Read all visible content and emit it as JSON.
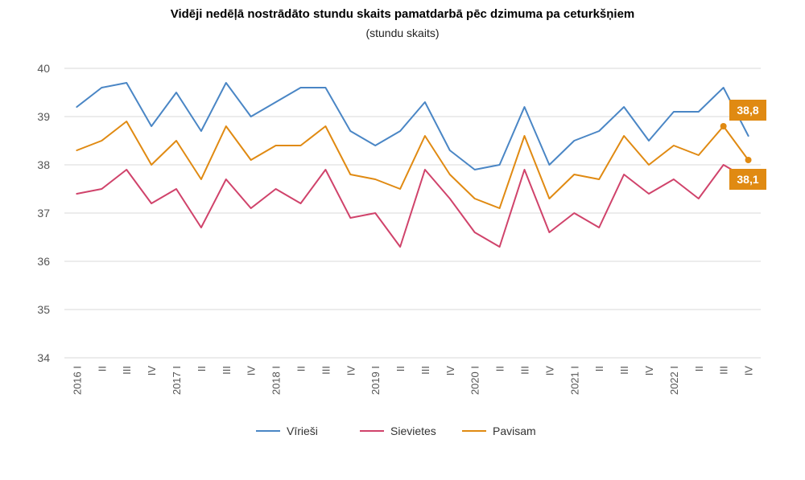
{
  "chart_data": {
    "type": "line",
    "title": "Vidēji nedēļā nostrādāto stundu skaits pamatdarbā pēc dzimuma pa ceturkšņiem",
    "subtitle": "(stundu skaits)",
    "xlabel": "",
    "ylabel": "",
    "ylim": [
      34,
      40
    ],
    "yticks": [
      "40",
      "39",
      "38",
      "37",
      "36",
      "35",
      "34"
    ],
    "grid": true,
    "legend_position": "bottom",
    "categories": [
      "2016 I",
      "II",
      "III",
      "IV",
      "2017 I",
      "II",
      "III",
      "IV",
      "2018 I",
      "II",
      "III",
      "IV",
      "2019 I",
      "II",
      "III",
      "IV",
      "2020 I",
      "II",
      "III",
      "IV",
      "2021 I",
      "II",
      "III",
      "IV",
      "2022 I",
      "II",
      "III",
      "IV"
    ],
    "series": [
      {
        "name": "Vīrieši",
        "color": "#4a86c5",
        "values": [
          39.2,
          39.6,
          39.7,
          38.8,
          39.5,
          38.7,
          39.7,
          39.0,
          39.3,
          39.6,
          39.6,
          38.7,
          38.4,
          38.7,
          39.3,
          38.3,
          37.9,
          38.0,
          39.2,
          38.0,
          38.5,
          38.7,
          39.2,
          38.5,
          39.1,
          39.1,
          39.6,
          38.6
        ]
      },
      {
        "name": "Sievietes",
        "color": "#d0436b",
        "values": [
          37.4,
          37.5,
          37.9,
          37.2,
          37.5,
          36.7,
          37.7,
          37.1,
          37.5,
          37.2,
          37.9,
          36.9,
          37.0,
          36.3,
          37.9,
          37.3,
          36.6,
          36.3,
          37.9,
          36.6,
          37.0,
          36.7,
          37.8,
          37.4,
          37.7,
          37.3,
          38.0,
          37.7
        ]
      },
      {
        "name": "Pavisam",
        "color": "#e08a12",
        "values": [
          38.3,
          38.5,
          38.9,
          38.0,
          38.5,
          37.7,
          38.8,
          38.1,
          38.4,
          38.4,
          38.8,
          37.8,
          37.7,
          37.5,
          38.6,
          37.8,
          37.3,
          37.1,
          38.6,
          37.3,
          37.8,
          37.7,
          38.6,
          38.0,
          38.4,
          38.2,
          38.8,
          38.1
        ]
      }
    ],
    "annotations": [
      {
        "text": "38,8",
        "series": "Pavisam",
        "category_index": 26,
        "color": "#e08a12"
      },
      {
        "text": "38,1",
        "series": "Pavisam",
        "category_index": 27,
        "color": "#e08a12"
      }
    ]
  }
}
